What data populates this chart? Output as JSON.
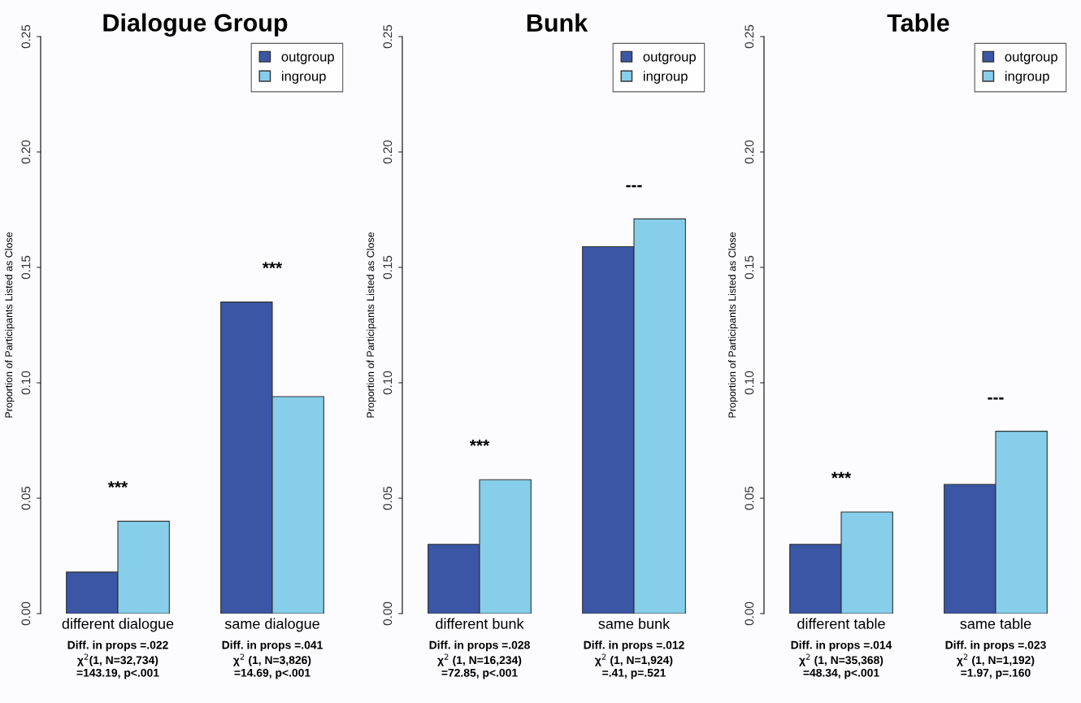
{
  "chart_data": [
    {
      "type": "bar",
      "title": "Dialogue Group",
      "ylabel": "Proportion of Participants Listed as Close",
      "categories": [
        "different dialogue",
        "same dialogue"
      ],
      "series": [
        {
          "name": "outgroup",
          "color": "#3a56a5",
          "values": [
            0.018,
            0.135
          ]
        },
        {
          "name": "ingroup",
          "color": "#87ceeb",
          "values": [
            0.04,
            0.094
          ]
        }
      ],
      "ylim": [
        0,
        0.25
      ],
      "yticks": [
        {
          "value": 0,
          "label": "0.00"
        },
        {
          "value": 0.05,
          "label": "0.05"
        },
        {
          "value": 0.1,
          "label": "0.10"
        },
        {
          "value": 0.15,
          "label": "0.15"
        },
        {
          "value": 0.2,
          "label": "0.20"
        },
        {
          "value": 0.25,
          "label": "0.25"
        }
      ],
      "legend": "top right",
      "grid": false,
      "annotations": [
        "***",
        "***",
        "Diff. in props =.022\nχ$^{2}$(1, N=32,734)\n=143.19, p<.001",
        "Diff. in props =.041\nχ$^{2}$ (1, N=3,826)\n=14.69, p<.001"
      ]
    },
    {
      "type": "bar",
      "title": "Bunk",
      "ylabel": "Proportion of Participants Listed as Close",
      "categories": [
        "different bunk",
        "same bunk"
      ],
      "series": [
        {
          "name": "outgroup",
          "color": "#3a56a5",
          "values": [
            0.03,
            0.159
          ]
        },
        {
          "name": "ingroup",
          "color": "#87ceeb",
          "values": [
            0.058,
            0.171
          ]
        }
      ],
      "ylim": [
        0,
        0.25
      ],
      "yticks": [
        {
          "value": 0,
          "label": "0.00"
        },
        {
          "value": 0.05,
          "label": "0.05"
        },
        {
          "value": 0.1,
          "label": "0.10"
        },
        {
          "value": 0.15,
          "label": "0.15"
        },
        {
          "value": 0.2,
          "label": "0.20"
        },
        {
          "value": 0.25,
          "label": "0.25"
        }
      ],
      "legend": "top right",
      "grid": false,
      "annotations": [
        "***",
        "---",
        "Diff. in props =.028\nχ$^{2}$ (1, N=16,234)\n=72.85, p<.001",
        "Diff. in props =.012\nχ$^{2}$ (1, N=1,924)\n=.41, p=.521"
      ]
    },
    {
      "type": "bar",
      "title": "Table",
      "ylabel": "Proportion of Participants Listed as Close",
      "categories": [
        "different table",
        "same table"
      ],
      "series": [
        {
          "name": "outgroup",
          "color": "#3a56a5",
          "values": [
            0.03,
            0.056
          ]
        },
        {
          "name": "ingroup",
          "color": "#87ceeb",
          "values": [
            0.044,
            0.079
          ]
        }
      ],
      "ylim": [
        0,
        0.25
      ],
      "yticks": [
        {
          "value": 0,
          "label": "0.00"
        },
        {
          "value": 0.05,
          "label": "0.05"
        },
        {
          "value": 0.1,
          "label": "0.10"
        },
        {
          "value": 0.15,
          "label": "0.15"
        },
        {
          "value": 0.2,
          "label": "0.20"
        },
        {
          "value": 0.25,
          "label": "0.25"
        }
      ],
      "legend": "top right",
      "grid": false,
      "annotations": [
        "***",
        "---",
        "Diff. in props =.014\nχ$^{2}$ (1, N=35,368)\n=48.34, p<.001",
        "Diff. in props =.023\nχ$^{2}$ (1, N=1,192)\n=1.97, p=.160"
      ]
    }
  ]
}
